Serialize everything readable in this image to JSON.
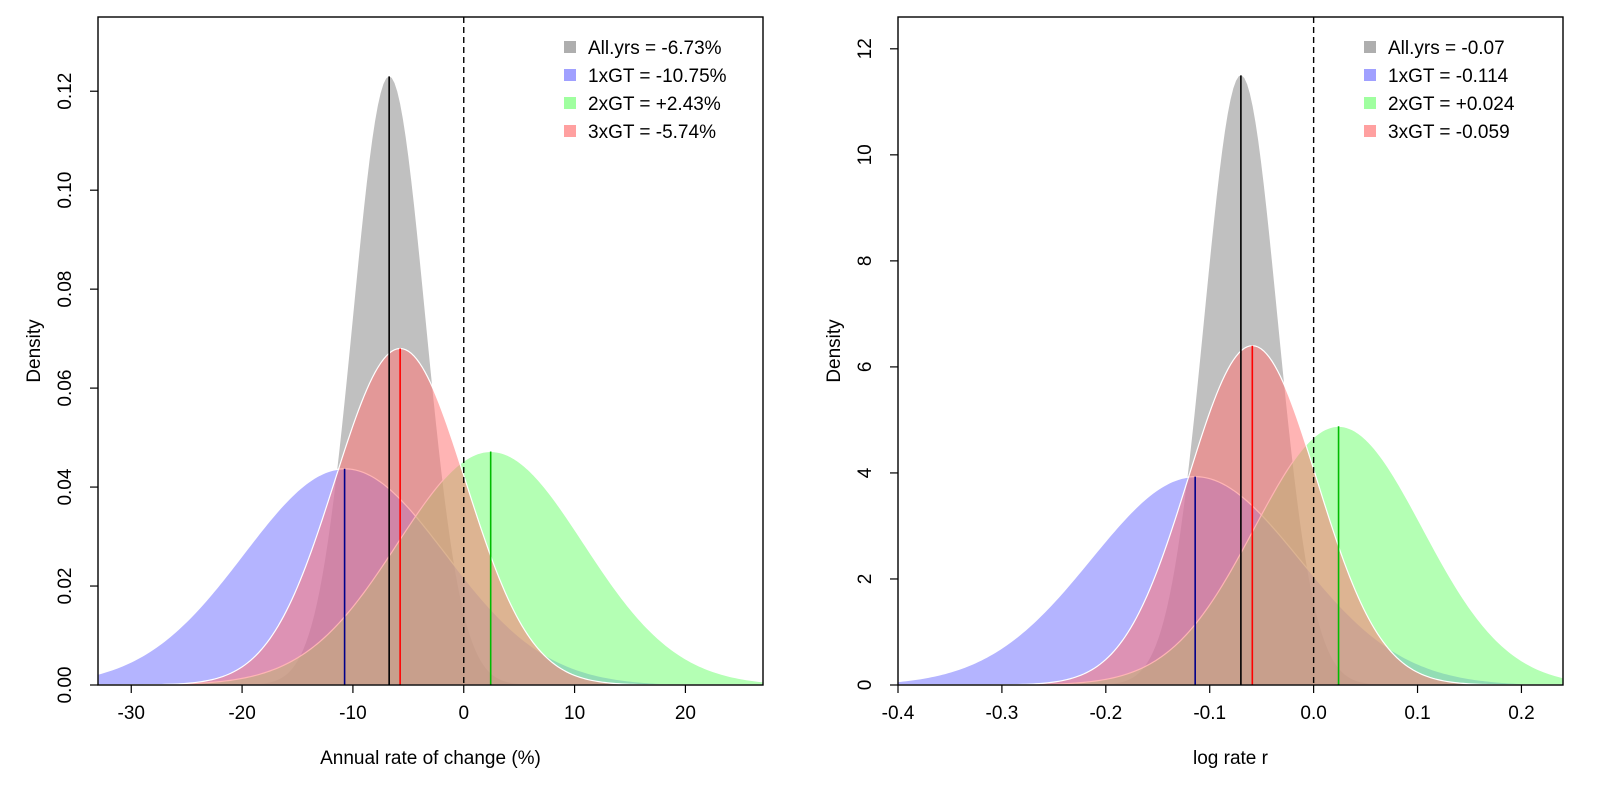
{
  "chart_data": [
    {
      "type": "area",
      "xlabel": "Annual rate of change (%)",
      "ylabel": "Density",
      "xlim": [
        -33,
        27
      ],
      "ylim": [
        0,
        0.135
      ],
      "xticks": [
        -30,
        -20,
        -10,
        0,
        10,
        20
      ],
      "xtick_labels": [
        "-30",
        "-20",
        "-10",
        "0",
        "10",
        "20"
      ],
      "yticks": [
        0,
        0.02,
        0.04,
        0.06,
        0.08,
        0.1,
        0.12
      ],
      "ytick_labels": [
        "0.00",
        "0.02",
        "0.04",
        "0.06",
        "0.08",
        "0.10",
        "0.12"
      ],
      "reference_line_x": 0,
      "grid": false,
      "legend_position": "top-right",
      "series": [
        {
          "name": "All.yrs",
          "legend": "All.yrs = -6.73%",
          "mean": -6.73,
          "sd": 3.25,
          "peak": 0.123,
          "fill": "#8c8c8c",
          "line": "#000000"
        },
        {
          "name": "1xGT",
          "legend": "1xGT = -10.75%",
          "mean": -10.75,
          "sd": 9.1,
          "peak": 0.0437,
          "fill": "#7777ff",
          "line": "#00008b"
        },
        {
          "name": "2xGT",
          "legend": "2xGT = +2.43%",
          "mean": 2.43,
          "sd": 8.4,
          "peak": 0.0472,
          "fill": "#77ff77",
          "line": "#00bb00"
        },
        {
          "name": "3xGT",
          "legend": "3xGT = -5.74%",
          "mean": -5.74,
          "sd": 5.9,
          "peak": 0.068,
          "fill": "#ff7777",
          "line": "#ff0000"
        }
      ]
    },
    {
      "type": "area",
      "xlabel": "log rate r",
      "ylabel": "Density",
      "xlim": [
        -0.4,
        0.24
      ],
      "ylim": [
        0,
        12.6
      ],
      "xticks": [
        -0.4,
        -0.3,
        -0.2,
        -0.1,
        0,
        0.1,
        0.2
      ],
      "xtick_labels": [
        "-0.4",
        "-0.3",
        "-0.2",
        "-0.1",
        "0.0",
        "0.1",
        "0.2"
      ],
      "yticks": [
        0,
        2,
        4,
        6,
        8,
        10,
        12
      ],
      "ytick_labels": [
        "0",
        "2",
        "4",
        "6",
        "8",
        "10",
        "12"
      ],
      "reference_line_x": 0,
      "grid": false,
      "legend_position": "top-right",
      "series": [
        {
          "name": "All.yrs",
          "legend": "All.yrs = -0.07",
          "mean": -0.07,
          "sd": 0.035,
          "peak": 11.5,
          "fill": "#8c8c8c",
          "line": "#000000"
        },
        {
          "name": "1xGT",
          "legend": "1xGT = -0.114",
          "mean": -0.114,
          "sd": 0.1,
          "peak": 3.93,
          "fill": "#7777ff",
          "line": "#00008b"
        },
        {
          "name": "2xGT",
          "legend": "2xGT = +0.024",
          "mean": 0.024,
          "sd": 0.081,
          "peak": 4.88,
          "fill": "#77ff77",
          "line": "#00bb00"
        },
        {
          "name": "3xGT",
          "legend": "3xGT = -0.059",
          "mean": -0.059,
          "sd": 0.062,
          "peak": 6.4,
          "fill": "#ff7777",
          "line": "#ff0000"
        }
      ]
    }
  ]
}
